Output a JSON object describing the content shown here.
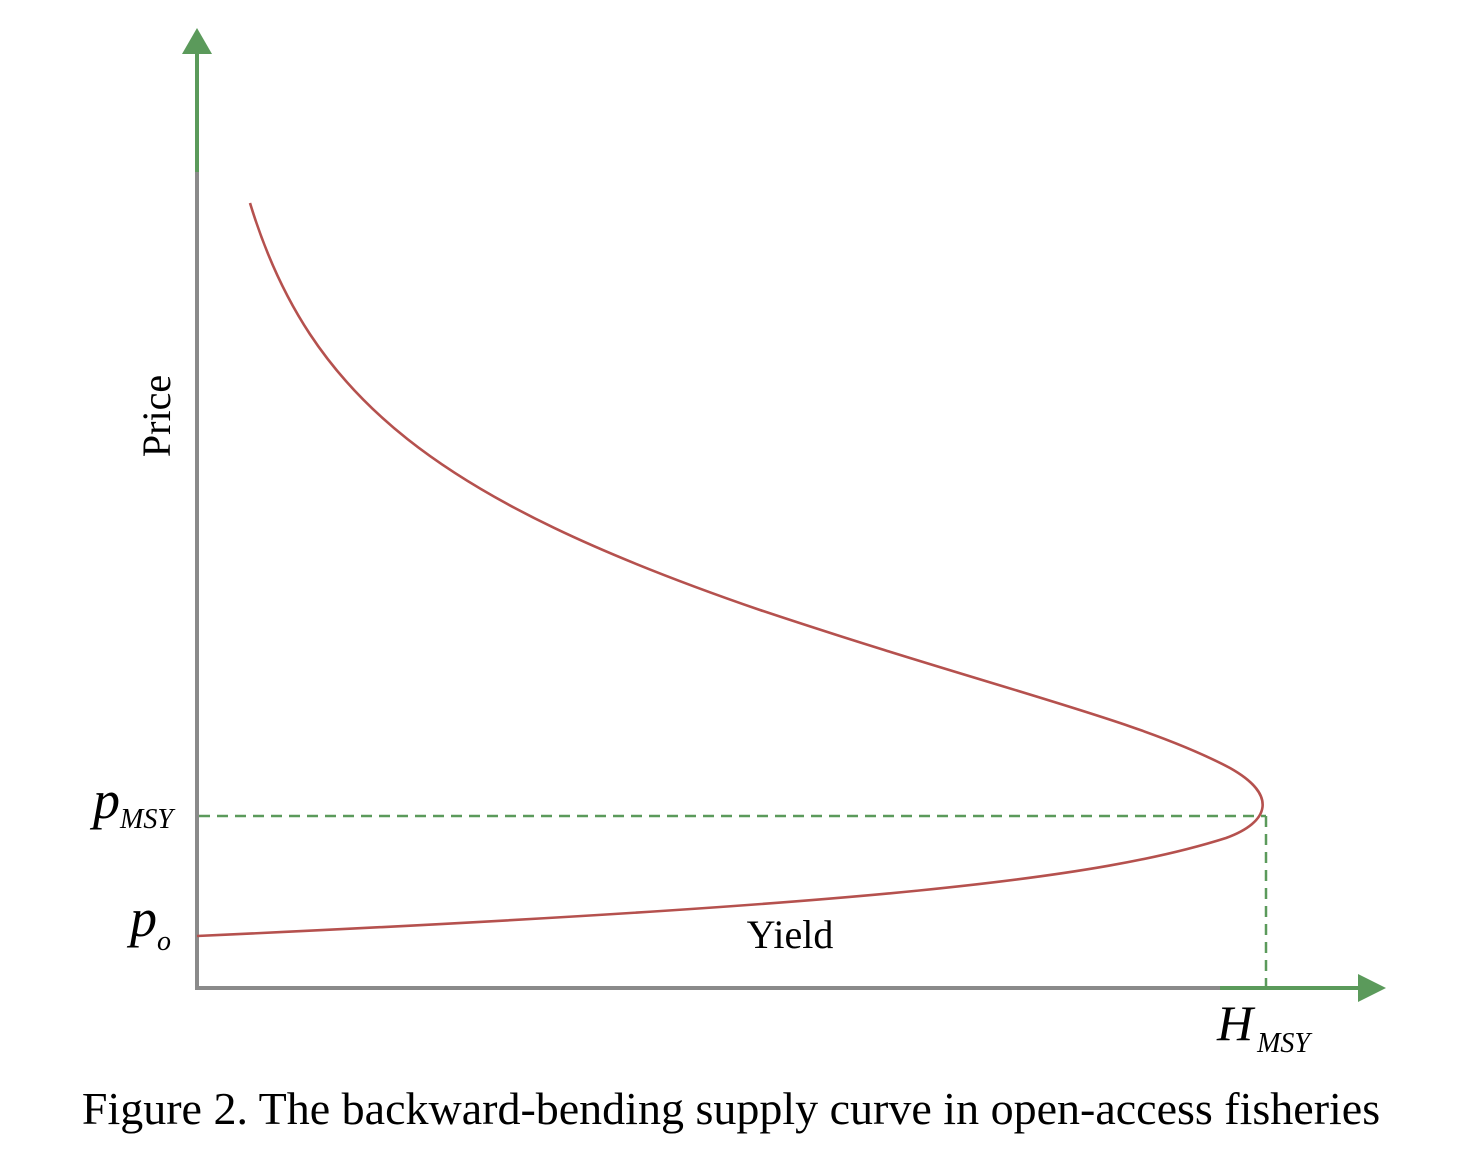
{
  "figure": {
    "caption": "Figure 2. The backward-bending supply curve in open-access fisheries",
    "y_axis_label": "Price",
    "x_axis_label": "Yield",
    "p_msy_label": {
      "base": "p",
      "sub": "MSY"
    },
    "p_o_label": {
      "base": "p",
      "sub": "o"
    },
    "h_msy_label": {
      "base": "H",
      "sub": "MSY"
    }
  },
  "colors": {
    "axis_gray": "#8a8a8a",
    "axis_arrow_green": "#5b9a5b",
    "curve_red": "#b5514e",
    "guide_green": "#5b9a5b",
    "text": "#000000"
  }
}
